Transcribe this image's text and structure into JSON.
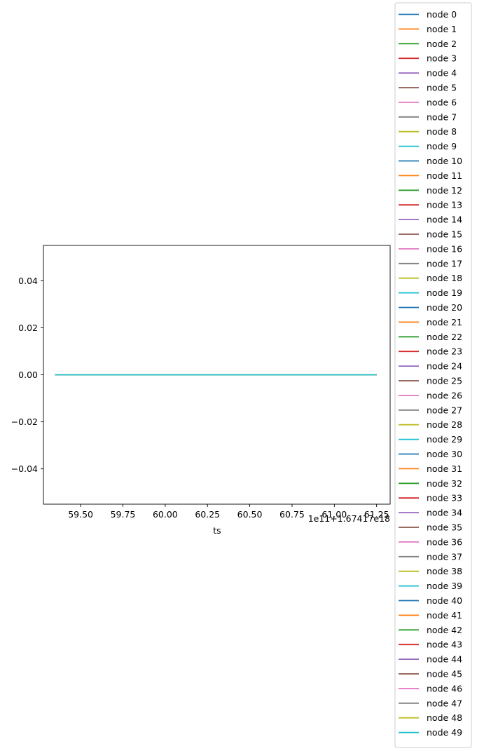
{
  "chart_data": {
    "type": "line",
    "xlabel": "ts",
    "x_offset_label": "1e11+1.67417e18",
    "xlim": [
      59.28,
      61.33
    ],
    "ylim": [
      -0.055,
      0.055
    ],
    "x_ticks": [
      59.5,
      59.75,
      60.0,
      60.25,
      60.5,
      60.75,
      61.0,
      61.25
    ],
    "x_tick_labels": [
      "59.50",
      "59.75",
      "60.00",
      "60.25",
      "60.50",
      "60.75",
      "61.00",
      "61.25"
    ],
    "y_ticks": [
      0.04,
      0.02,
      0.0,
      -0.02,
      -0.04
    ],
    "y_tick_labels": [
      "0.04",
      "0.02",
      "0.00",
      "−0.02",
      "−0.04"
    ],
    "grid": false,
    "legend_placement": "right-outside",
    "x": [
      59.35,
      61.25
    ],
    "series": [
      {
        "name": "node 0",
        "color": "#1f77b4",
        "values": [
          0,
          0
        ]
      },
      {
        "name": "node 1",
        "color": "#ff7f0e",
        "values": [
          0,
          0
        ]
      },
      {
        "name": "node 2",
        "color": "#2ca02c",
        "values": [
          0,
          0
        ]
      },
      {
        "name": "node 3",
        "color": "#d62728",
        "values": [
          0,
          0
        ]
      },
      {
        "name": "node 4",
        "color": "#9467bd",
        "values": [
          0,
          0
        ]
      },
      {
        "name": "node 5",
        "color": "#8c564b",
        "values": [
          0,
          0
        ]
      },
      {
        "name": "node 6",
        "color": "#e377c2",
        "values": [
          0,
          0
        ]
      },
      {
        "name": "node 7",
        "color": "#7f7f7f",
        "values": [
          0,
          0
        ]
      },
      {
        "name": "node 8",
        "color": "#bcbd22",
        "values": [
          0,
          0
        ]
      },
      {
        "name": "node 9",
        "color": "#17becf",
        "values": [
          0,
          0
        ]
      },
      {
        "name": "node 10",
        "color": "#1f77b4",
        "values": [
          0,
          0
        ]
      },
      {
        "name": "node 11",
        "color": "#ff7f0e",
        "values": [
          0,
          0
        ]
      },
      {
        "name": "node 12",
        "color": "#2ca02c",
        "values": [
          0,
          0
        ]
      },
      {
        "name": "node 13",
        "color": "#d62728",
        "values": [
          0,
          0
        ]
      },
      {
        "name": "node 14",
        "color": "#9467bd",
        "values": [
          0,
          0
        ]
      },
      {
        "name": "node 15",
        "color": "#8c564b",
        "values": [
          0,
          0
        ]
      },
      {
        "name": "node 16",
        "color": "#e377c2",
        "values": [
          0,
          0
        ]
      },
      {
        "name": "node 17",
        "color": "#7f7f7f",
        "values": [
          0,
          0
        ]
      },
      {
        "name": "node 18",
        "color": "#bcbd22",
        "values": [
          0,
          0
        ]
      },
      {
        "name": "node 19",
        "color": "#17becf",
        "values": [
          0,
          0
        ]
      },
      {
        "name": "node 20",
        "color": "#1f77b4",
        "values": [
          0,
          0
        ]
      },
      {
        "name": "node 21",
        "color": "#ff7f0e",
        "values": [
          0,
          0
        ]
      },
      {
        "name": "node 22",
        "color": "#2ca02c",
        "values": [
          0,
          0
        ]
      },
      {
        "name": "node 23",
        "color": "#d62728",
        "values": [
          0,
          0
        ]
      },
      {
        "name": "node 24",
        "color": "#9467bd",
        "values": [
          0,
          0
        ]
      },
      {
        "name": "node 25",
        "color": "#8c564b",
        "values": [
          0,
          0
        ]
      },
      {
        "name": "node 26",
        "color": "#e377c2",
        "values": [
          0,
          0
        ]
      },
      {
        "name": "node 27",
        "color": "#7f7f7f",
        "values": [
          0,
          0
        ]
      },
      {
        "name": "node 28",
        "color": "#bcbd22",
        "values": [
          0,
          0
        ]
      },
      {
        "name": "node 29",
        "color": "#17becf",
        "values": [
          0,
          0
        ]
      },
      {
        "name": "node 30",
        "color": "#1f77b4",
        "values": [
          0,
          0
        ]
      },
      {
        "name": "node 31",
        "color": "#ff7f0e",
        "values": [
          0,
          0
        ]
      },
      {
        "name": "node 32",
        "color": "#2ca02c",
        "values": [
          0,
          0
        ]
      },
      {
        "name": "node 33",
        "color": "#d62728",
        "values": [
          0,
          0
        ]
      },
      {
        "name": "node 34",
        "color": "#9467bd",
        "values": [
          0,
          0
        ]
      },
      {
        "name": "node 35",
        "color": "#8c564b",
        "values": [
          0,
          0
        ]
      },
      {
        "name": "node 36",
        "color": "#e377c2",
        "values": [
          0,
          0
        ]
      },
      {
        "name": "node 37",
        "color": "#7f7f7f",
        "values": [
          0,
          0
        ]
      },
      {
        "name": "node 38",
        "color": "#bcbd22",
        "values": [
          0,
          0
        ]
      },
      {
        "name": "node 39",
        "color": "#17becf",
        "values": [
          0,
          0
        ]
      },
      {
        "name": "node 40",
        "color": "#1f77b4",
        "values": [
          0,
          0
        ]
      },
      {
        "name": "node 41",
        "color": "#ff7f0e",
        "values": [
          0,
          0
        ]
      },
      {
        "name": "node 42",
        "color": "#2ca02c",
        "values": [
          0,
          0
        ]
      },
      {
        "name": "node 43",
        "color": "#d62728",
        "values": [
          0,
          0
        ]
      },
      {
        "name": "node 44",
        "color": "#9467bd",
        "values": [
          0,
          0
        ]
      },
      {
        "name": "node 45",
        "color": "#8c564b",
        "values": [
          0,
          0
        ]
      },
      {
        "name": "node 46",
        "color": "#e377c2",
        "values": [
          0,
          0
        ]
      },
      {
        "name": "node 47",
        "color": "#7f7f7f",
        "values": [
          0,
          0
        ]
      },
      {
        "name": "node 48",
        "color": "#bcbd22",
        "values": [
          0,
          0
        ]
      },
      {
        "name": "node 49",
        "color": "#17becf",
        "values": [
          0,
          0
        ]
      }
    ]
  }
}
